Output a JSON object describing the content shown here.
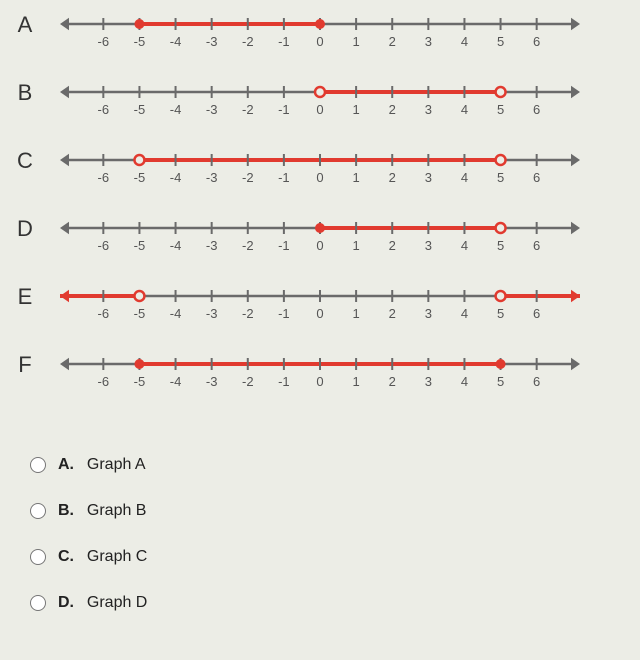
{
  "axis": {
    "min": -6,
    "max": 6,
    "tick_step": 1,
    "line_color": "#6a6a6a",
    "tick_color": "#6a6a6a",
    "label_color": "#555",
    "label_fontsize": 13,
    "red": "#e13a2f",
    "red_line_width": 4,
    "base_line_width": 2.5,
    "tick_labels": [
      "-6",
      "-5",
      "-4",
      "-3",
      "-2",
      "-1",
      "0",
      "1",
      "2",
      "3",
      "4",
      "5",
      "6"
    ]
  },
  "graphs": [
    {
      "id": "A",
      "segments": [
        {
          "from": -5,
          "to": 0
        }
      ],
      "points": [
        {
          "x": -5,
          "style": "closed"
        },
        {
          "x": 0,
          "style": "closed"
        }
      ],
      "red_arrows": []
    },
    {
      "id": "B",
      "segments": [
        {
          "from": 0,
          "to": 5
        }
      ],
      "points": [
        {
          "x": 0,
          "style": "open"
        },
        {
          "x": 5,
          "style": "open"
        }
      ],
      "red_arrows": []
    },
    {
      "id": "C",
      "segments": [
        {
          "from": -5,
          "to": 5
        }
      ],
      "points": [
        {
          "x": -5,
          "style": "open"
        },
        {
          "x": 5,
          "style": "open"
        }
      ],
      "red_arrows": []
    },
    {
      "id": "D",
      "segments": [
        {
          "from": 0,
          "to": 5
        }
      ],
      "points": [
        {
          "x": 0,
          "style": "closed"
        },
        {
          "x": 5,
          "style": "open"
        }
      ],
      "red_arrows": []
    },
    {
      "id": "E",
      "segments": [
        {
          "from": -7.2,
          "to": -5
        },
        {
          "from": 5,
          "to": 7.2
        }
      ],
      "points": [
        {
          "x": -5,
          "style": "open"
        },
        {
          "x": 5,
          "style": "open"
        }
      ],
      "red_arrows": [
        "left",
        "right"
      ]
    },
    {
      "id": "F",
      "segments": [
        {
          "from": -5,
          "to": 5
        }
      ],
      "points": [
        {
          "x": -5,
          "style": "closed"
        },
        {
          "x": 5,
          "style": "closed"
        }
      ],
      "red_arrows": []
    }
  ],
  "options": [
    {
      "key": "A",
      "label": "Graph A"
    },
    {
      "key": "B",
      "label": "Graph B"
    },
    {
      "key": "C",
      "label": "Graph C"
    },
    {
      "key": "D",
      "label": "Graph D"
    }
  ]
}
